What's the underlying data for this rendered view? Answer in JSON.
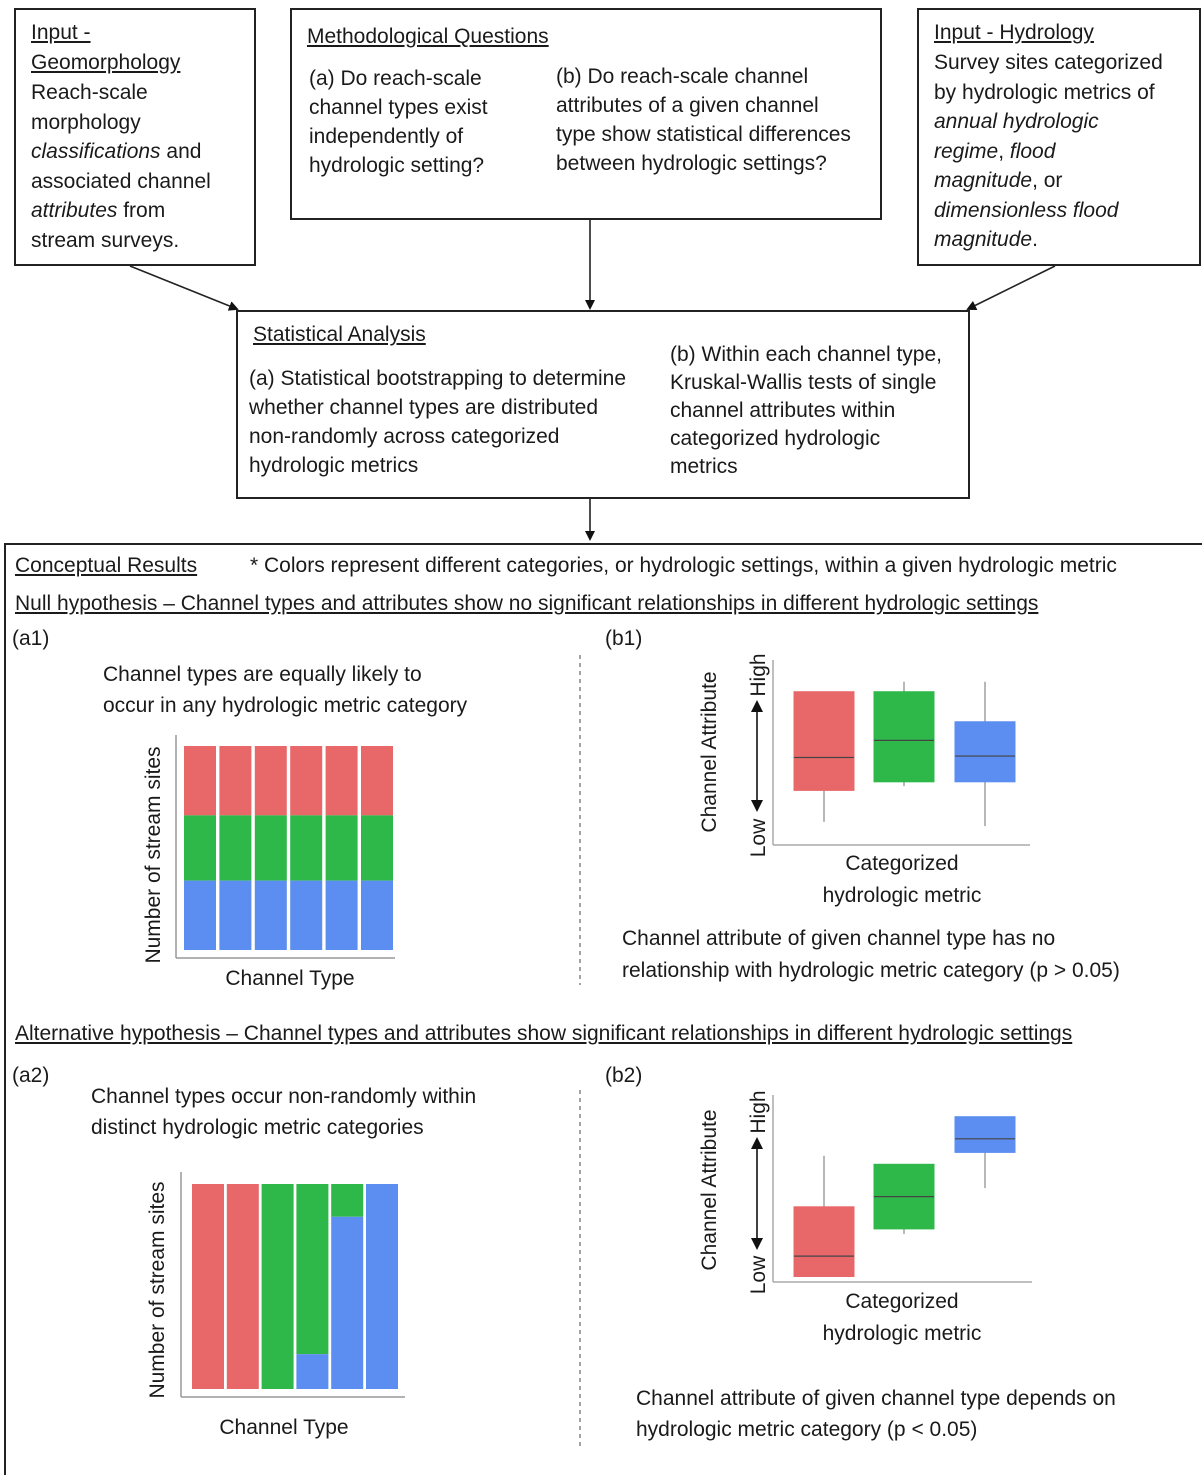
{
  "geomorphology": {
    "heading_line1": "Input -",
    "heading_line2": "Geomorphology",
    "body": [
      {
        "text": "Reach-scale"
      },
      {
        "text": "morphology"
      },
      {
        "parts": [
          {
            "t": "classifications",
            "i": true
          },
          {
            "t": " and",
            "i": false
          }
        ]
      },
      {
        "text": "associated channel"
      },
      {
        "parts": [
          {
            "t": "attributes",
            "i": true
          },
          {
            "t": " from",
            "i": false
          }
        ]
      },
      {
        "text": "stream surveys."
      }
    ]
  },
  "methodological": {
    "heading": "Methodological Questions",
    "question_a": [
      "(a) Do reach-scale",
      "channel types exist",
      "independently of",
      "hydrologic setting?"
    ],
    "question_b": [
      "(b) Do reach-scale channel",
      "attributes of a given channel",
      "type show statistical differences",
      "between hydrologic settings?"
    ]
  },
  "hydrology": {
    "heading": "Input - Hydrology",
    "body": [
      {
        "text": "Survey sites categorized"
      },
      {
        "text": "by hydrologic metrics of"
      },
      {
        "parts": [
          {
            "t": "annual hydrologic",
            "i": true
          }
        ]
      },
      {
        "parts": [
          {
            "t": "regime",
            "i": true
          },
          {
            "t": ", ",
            "i": false
          },
          {
            "t": "flood",
            "i": true
          }
        ]
      },
      {
        "parts": [
          {
            "t": "magnitude",
            "i": true
          },
          {
            "t": ", or",
            "i": false
          }
        ]
      },
      {
        "parts": [
          {
            "t": "dimensionless flood",
            "i": true
          }
        ]
      },
      {
        "parts": [
          {
            "t": "magnitude",
            "i": true
          },
          {
            "t": ".",
            "i": false
          }
        ]
      }
    ]
  },
  "statistical": {
    "heading": "Statistical Analysis",
    "analysis_a": [
      "(a) Statistical bootstrapping to determine",
      "whether channel types are distributed",
      "non-randomly across categorized",
      "hydrologic metrics"
    ],
    "analysis_b": [
      "(b) Within each channel type,",
      "Kruskal-Wallis tests of single",
      "channel attributes within",
      "categorized hydrologic",
      "metrics"
    ]
  },
  "results": {
    "heading": "Conceptual Results",
    "note": "* Colors represent different categories, or hydrologic settings, within a given hydrologic metric",
    "null_hypothesis": "Null hypothesis – Channel types and attributes show no significant relationships in different hydrologic settings",
    "alt_hypothesis": "Alternative hypothesis – Channel types and attributes show significant relationships in different hydrologic settings",
    "a1": {
      "tag": "(a1)",
      "caption": [
        "Channel types are equally likely to",
        "occur in any hydrologic metric category"
      ]
    },
    "b1": {
      "tag": "(b1)",
      "caption": [
        "Channel attribute of given channel type has no",
        "relationship with hydrologic metric category (p > 0.05)"
      ]
    },
    "a2": {
      "tag": "(a2)",
      "caption": [
        "Channel types occur non-randomly within",
        "distinct hydrologic metric categories"
      ]
    },
    "b2": {
      "tag": "(b2)",
      "caption": [
        "Channel attribute of given channel type depends on",
        "hydrologic metric category (p < 0.05)"
      ]
    }
  },
  "colors": {
    "red": "#e8686a",
    "green": "#2eb84a",
    "blue": "#5b8ef0"
  },
  "chart_data": [
    {
      "id": "a1",
      "type": "bar",
      "stacked": true,
      "xlabel": "Channel Type",
      "ylabel": "Number of stream sites",
      "categories": [
        "",
        "",
        "",
        "",
        "",
        ""
      ],
      "series": [
        {
          "color": "red",
          "values": [
            0.34,
            0.34,
            0.34,
            0.34,
            0.34,
            0.34
          ]
        },
        {
          "color": "green",
          "values": [
            0.32,
            0.32,
            0.32,
            0.32,
            0.32,
            0.32
          ]
        },
        {
          "color": "blue",
          "values": [
            0.34,
            0.34,
            0.34,
            0.34,
            0.34,
            0.34
          ]
        }
      ]
    },
    {
      "id": "b1",
      "type": "box",
      "xlabel": "Categorized hydrologic metric",
      "xlabel_lines": [
        "Categorized",
        "hydrologic metric"
      ],
      "ylabel": "Channel Attribute",
      "y_high": "High",
      "y_low": "Low",
      "boxes": [
        {
          "color": "red",
          "whisker_low": 0.05,
          "q1": 0.27,
          "median": 0.5,
          "q3": 0.96,
          "whisker_high": 0.96
        },
        {
          "color": "green",
          "whisker_low": 0.3,
          "q1": 0.33,
          "median": 0.62,
          "q3": 0.96,
          "whisker_high": 1.03
        },
        {
          "color": "blue",
          "whisker_low": 0.02,
          "q1": 0.33,
          "median": 0.51,
          "q3": 0.75,
          "whisker_high": 1.03
        }
      ]
    },
    {
      "id": "a2",
      "type": "bar",
      "stacked": true,
      "xlabel": "Channel Type",
      "ylabel": "Number of stream sites",
      "categories": [
        "",
        "",
        "",
        "",
        "",
        ""
      ],
      "series": [
        {
          "color": "red",
          "values": [
            1.0,
            1.0,
            0,
            0,
            0,
            0
          ]
        },
        {
          "color": "green",
          "values": [
            0,
            0,
            1.0,
            0.83,
            0.16,
            0
          ]
        },
        {
          "color": "blue",
          "values": [
            0,
            0,
            0,
            0.17,
            0.84,
            1.0
          ]
        }
      ]
    },
    {
      "id": "b2",
      "type": "box",
      "xlabel": "Categorized hydrologic metric",
      "xlabel_lines": [
        "Categorized",
        "hydrologic metric"
      ],
      "ylabel": "Channel Attribute",
      "y_high": "High",
      "y_low": "Low",
      "boxes": [
        {
          "color": "red",
          "whisker_low": 0.05,
          "q1": 0.05,
          "median": 0.17,
          "q3": 0.46,
          "whisker_high": 0.76
        },
        {
          "color": "green",
          "whisker_low": 0.3,
          "q1": 0.33,
          "median": 0.52,
          "q3": 0.71,
          "whisker_high": 0.71
        },
        {
          "color": "blue",
          "whisker_low": 0.57,
          "q1": 0.78,
          "median": 0.86,
          "q3": 0.99,
          "whisker_high": 0.99
        }
      ]
    }
  ]
}
